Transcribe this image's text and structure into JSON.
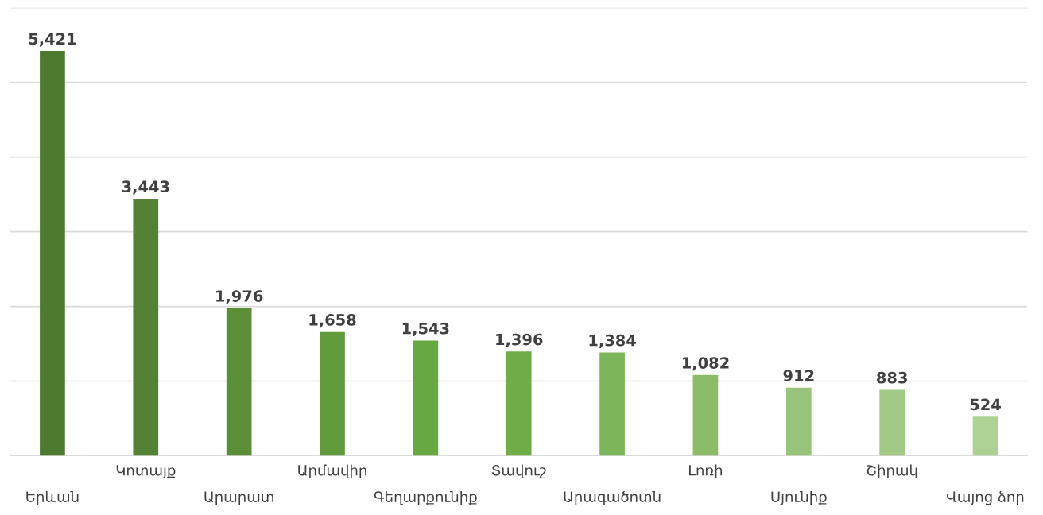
{
  "chart_data": {
    "type": "bar",
    "categories": [
      "Երևան",
      "Կոտայք",
      "Արարատ",
      "Արմավիր",
      "Գեղարքունիք",
      "Տավուշ",
      "Արագածոտն",
      "Լոռի",
      "Սյունիք",
      "Շիրակ",
      "Վայոց ձոր"
    ],
    "values": [
      5421,
      3443,
      1976,
      1658,
      1543,
      1396,
      1384,
      1082,
      912,
      883,
      524
    ],
    "colors": [
      "#4d7a2f",
      "#548235",
      "#5b8f37",
      "#619b3c",
      "#68a843",
      "#70ad47",
      "#7db55a",
      "#8bbd68",
      "#97c47a",
      "#a2ca86",
      "#add294"
    ],
    "ylim": [
      0,
      6000
    ],
    "yticks": [
      {
        "value": 0,
        "label": null
      },
      {
        "value": 1000,
        "label": null
      },
      {
        "value": 2000,
        "label": null
      },
      {
        "value": 3000,
        "label": null
      },
      {
        "value": 4000,
        "label": null
      },
      {
        "value": 5000,
        "label": null
      },
      {
        "value": 6000,
        "label": null
      }
    ],
    "value_labels": [
      "5,421",
      "3,443",
      "1,976",
      "1,658",
      "1,543",
      "1,396",
      "1,384",
      "1,082",
      "912",
      "883",
      "524"
    ],
    "grid": "y",
    "tick_labels": "x"
  }
}
